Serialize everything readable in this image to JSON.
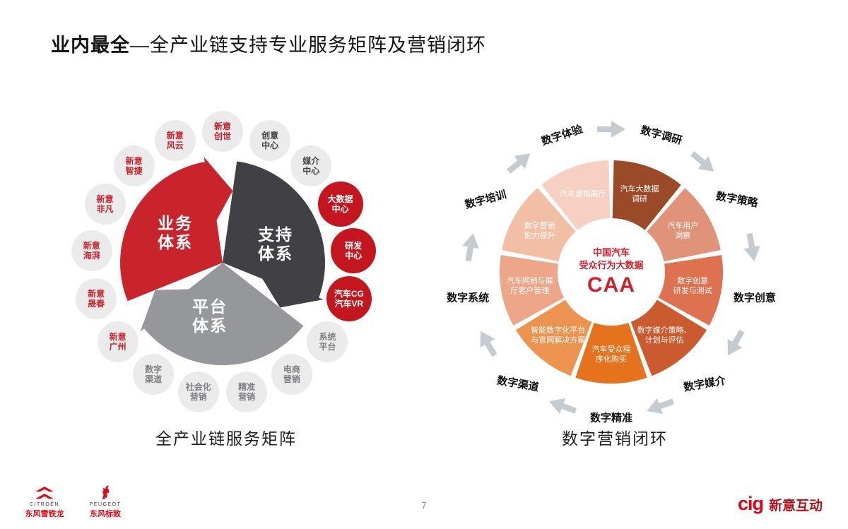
{
  "slide": {
    "title": {
      "bold": "业内最全",
      "rest": "—全产业链支持专业服务矩阵及营销闭环"
    },
    "page_number": "7"
  },
  "left_diagram": {
    "caption": "全产业链服务矩阵",
    "pie": {
      "segments": [
        {
          "id": "business",
          "label_lines": [
            "业务",
            "体系"
          ],
          "color": "#c9242b"
        },
        {
          "id": "support",
          "label_lines": [
            "支持",
            "体系"
          ],
          "color": "#414044"
        },
        {
          "id": "platform",
          "label_lines": [
            "平台",
            "体系"
          ],
          "color": "#96979a"
        }
      ]
    },
    "nodes": [
      {
        "lines": [
          "新意",
          "创世"
        ],
        "style": "red-text"
      },
      {
        "lines": [
          "创意",
          "中心"
        ],
        "style": "dark-text"
      },
      {
        "lines": [
          "媒介",
          "中心"
        ],
        "style": "dark-text"
      },
      {
        "lines": [
          "大数据",
          "中心"
        ],
        "style": "red-fill"
      },
      {
        "lines": [
          "研发",
          "中心"
        ],
        "style": "red-fill"
      },
      {
        "lines": [
          "汽车CG",
          "汽车VR"
        ],
        "style": "red-fill"
      },
      {
        "lines": [
          "系统",
          "平台"
        ],
        "style": "gray-text"
      },
      {
        "lines": [
          "电商",
          "营销"
        ],
        "style": "gray-text"
      },
      {
        "lines": [
          "精准",
          "营销"
        ],
        "style": "gray-text"
      },
      {
        "lines": [
          "社会化",
          "营销"
        ],
        "style": "gray-text"
      },
      {
        "lines": [
          "数字",
          "渠道"
        ],
        "style": "gray-text"
      },
      {
        "lines": [
          "新意",
          "广州"
        ],
        "style": "red-text"
      },
      {
        "lines": [
          "新意",
          "晟春"
        ],
        "style": "red-text"
      },
      {
        "lines": [
          "新意",
          "海湃"
        ],
        "style": "red-text"
      },
      {
        "lines": [
          "新意",
          "非凡"
        ],
        "style": "red-text"
      },
      {
        "lines": [
          "新意",
          "智捷"
        ],
        "style": "red-text"
      },
      {
        "lines": [
          "新意",
          "风云"
        ],
        "style": "red-text"
      }
    ]
  },
  "right_diagram": {
    "caption": "数字营销闭环",
    "center": {
      "line1": "中国汽车",
      "line2": "受众行为大数据",
      "acronym": "CAA"
    },
    "center_color": "#d21f2b",
    "segments": [
      {
        "outer_label": "数字调研",
        "ring_lines": [
          "汽车大数据",
          "调研"
        ],
        "color": "#9a4a27"
      },
      {
        "outer_label": "数字策略",
        "ring_lines": [
          "汽车用户",
          "洞察"
        ],
        "color": "#e09379"
      },
      {
        "outer_label": "数字创意",
        "ring_lines": [
          "数字创意",
          "研发与测试"
        ],
        "color": "#dd7150"
      },
      {
        "outer_label": "数字媒介",
        "ring_lines": [
          "数字媒介策略、",
          "计划与评估"
        ],
        "color": "#cb5a2e"
      },
      {
        "outer_label": "数字精准",
        "ring_lines": [
          "汽车受众程",
          "序化购买"
        ],
        "color": "#e5731d"
      },
      {
        "outer_label": "数字渠道",
        "ring_lines": [
          "智能数字化平台",
          "与官网解决方案"
        ],
        "color": "#ec9350"
      },
      {
        "outer_label": "数字系统",
        "ring_lines": [
          "汽车网销与展",
          "厅客户管理"
        ],
        "color": "#eda687"
      },
      {
        "outer_label": "数字培训",
        "ring_lines": [
          "数字营销",
          "能力提升"
        ],
        "color": "#f3bfa4"
      },
      {
        "outer_label": "数字体验",
        "ring_lines": [
          "汽车虚拟展厅"
        ],
        "color": "#f6d0c0"
      }
    ],
    "arrow_color": "#c6cbd2"
  },
  "footer": {
    "brands": [
      {
        "name": "CITROËN",
        "cn": "东风雪铁龙"
      },
      {
        "name": "PEUGEOT",
        "cn": "东风标致"
      }
    ],
    "logo": {
      "mark": "cig",
      "text": "新意互动"
    },
    "brand_red": "#e30613"
  }
}
